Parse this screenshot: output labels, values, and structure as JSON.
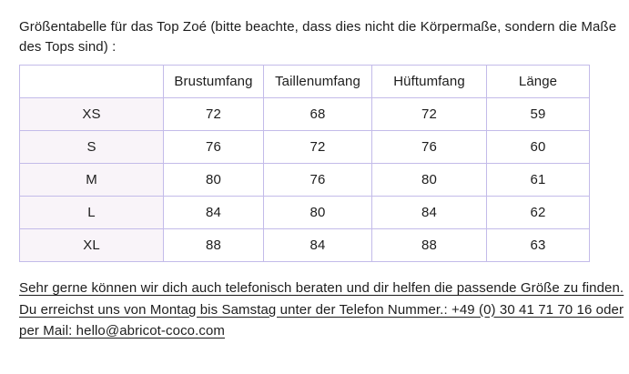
{
  "intro": {
    "lines": [
      "Größentabelle für das Top Zoé (bitte beachte, dass dies nicht die Körpermaße, sondern die Maße",
      "des Tops sind) :"
    ]
  },
  "size_table": {
    "columns": [
      "",
      "Brustumfang",
      "Taillenumfang",
      "Hüftumfang",
      "Länge"
    ],
    "rows": [
      {
        "size": "XS",
        "values": [
          72,
          68,
          72,
          59
        ]
      },
      {
        "size": "S",
        "values": [
          76,
          72,
          76,
          60
        ]
      },
      {
        "size": "M",
        "values": [
          80,
          76,
          80,
          61
        ]
      },
      {
        "size": "L",
        "values": [
          84,
          80,
          84,
          62
        ]
      },
      {
        "size": "XL",
        "values": [
          88,
          84,
          88,
          63
        ]
      }
    ]
  },
  "contact_note": {
    "lines": [
      "Sehr gerne können wir dich auch telefonisch beraten und dir helfen die passende Größe zu finden.",
      "Du erreichst uns von Montag bis Samstag unter der Telefon Nummer.: +49 (0) 30 41 71 70 16 oder",
      "per Mail: hello@abricot-coco.com"
    ],
    "phone": "+49 (0) 30 41 71 70 16",
    "email": "hello@abricot-coco.com"
  },
  "colors": {
    "table_border": "#c3bbe9",
    "size_column_bg": "#f9f4f9",
    "text": "#1d1d1d",
    "page_bg": "#ffffff"
  }
}
